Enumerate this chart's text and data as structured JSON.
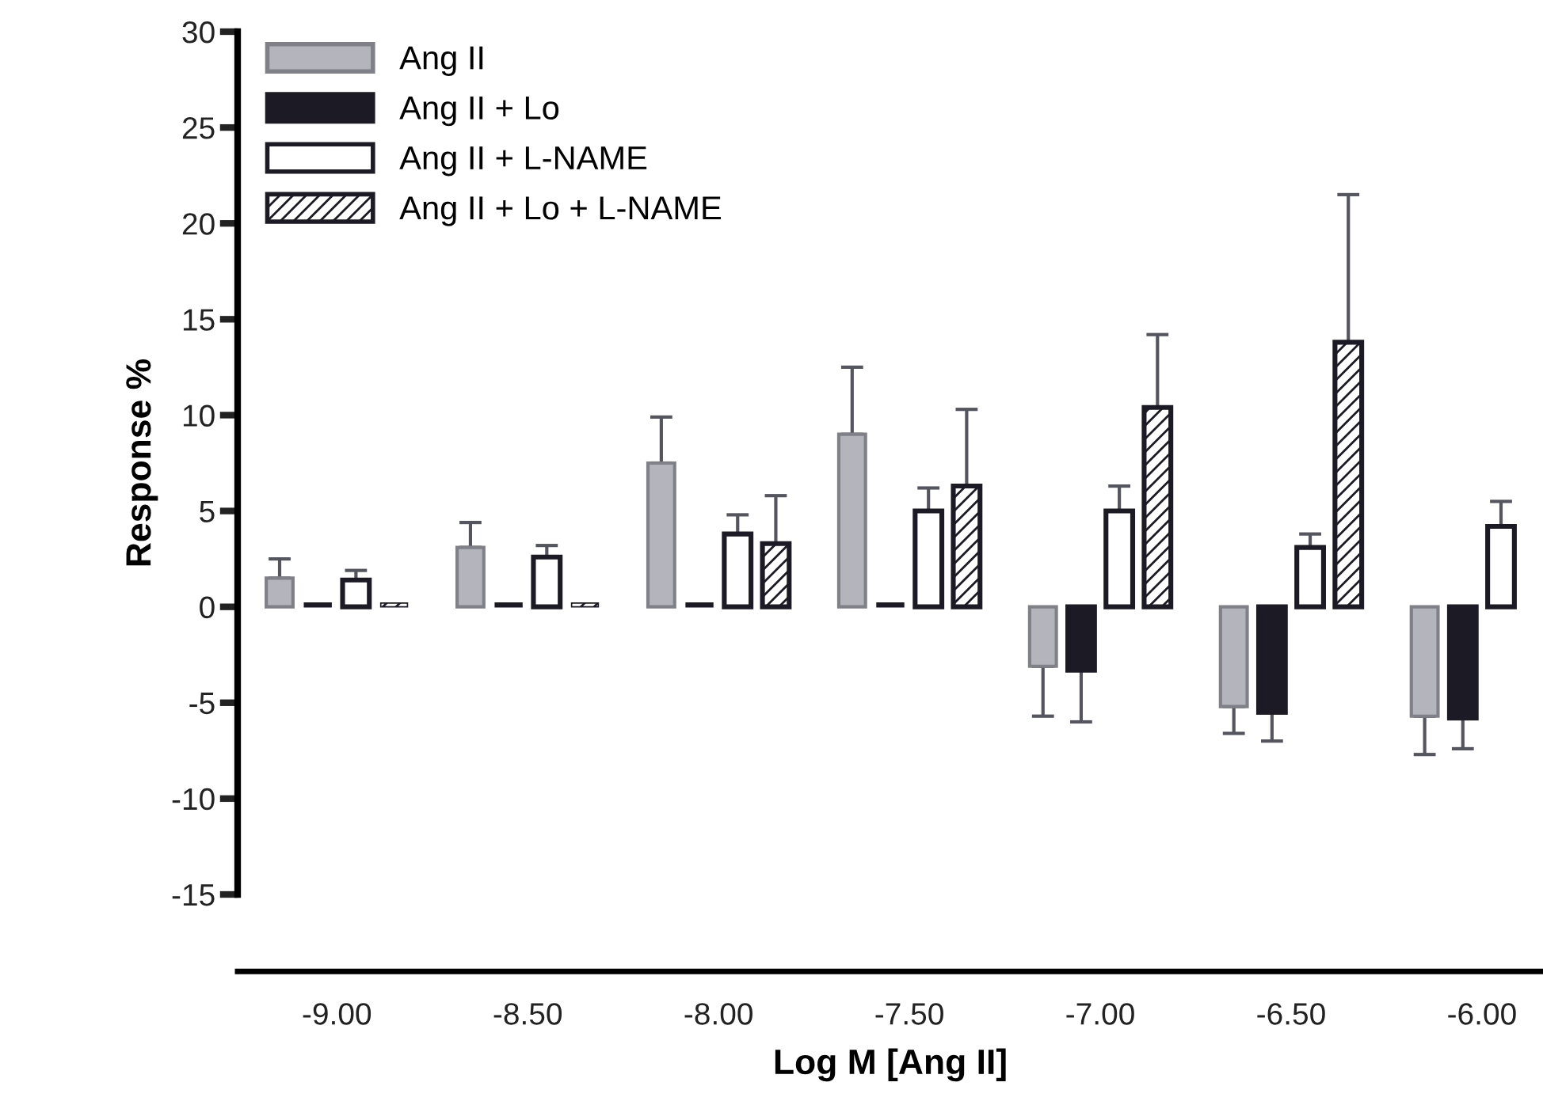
{
  "chart_data": {
    "type": "bar",
    "xlabel": "Log M [Ang II]",
    "ylabel": "Response %",
    "categories": [
      "-9.00",
      "-8.50",
      "-8.00",
      "-7.50",
      "-7.00",
      "-6.50",
      "-6.00"
    ],
    "series": [
      {
        "name": "Ang II",
        "color": "#b4b4bc",
        "values": [
          1.5,
          3.1,
          7.5,
          9.0,
          -3.1,
          -5.2,
          -5.7
        ],
        "errors": [
          [
            1.5,
            2.5
          ],
          [
            3.1,
            4.4
          ],
          [
            7.5,
            9.9
          ],
          [
            9.0,
            12.5
          ],
          [
            -5.7,
            -3.1
          ],
          [
            -6.6,
            -5.2
          ],
          [
            -7.7,
            -5.7
          ]
        ]
      },
      {
        "name": "Ang II + Lo",
        "color": "#1c1a24",
        "values": [
          0.2,
          0.2,
          0.2,
          0.2,
          -3.3,
          -5.5,
          -5.8
        ],
        "errors": [
          null,
          null,
          null,
          null,
          [
            -6.0,
            -3.3
          ],
          [
            -7.0,
            -5.5
          ],
          [
            -7.4,
            -5.8
          ]
        ]
      },
      {
        "name": "Ang II + L-NAME",
        "color": "#ffffff",
        "values": [
          1.4,
          2.6,
          3.8,
          5.0,
          5.0,
          3.1,
          4.2
        ],
        "errors": [
          [
            1.4,
            1.9
          ],
          [
            2.6,
            3.2
          ],
          [
            3.8,
            4.8
          ],
          [
            5.0,
            6.2
          ],
          [
            5.0,
            6.3
          ],
          [
            3.1,
            3.8
          ],
          [
            4.2,
            5.5
          ]
        ]
      },
      {
        "name": "Ang II + Lo + L-NAME",
        "color": "#ffffff",
        "values": [
          0.2,
          0.2,
          3.3,
          6.3,
          10.4,
          13.8,
          null
        ],
        "errors": [
          null,
          null,
          [
            3.3,
            5.8
          ],
          [
            6.3,
            10.3
          ],
          [
            10.4,
            14.2
          ],
          [
            13.8,
            21.5
          ],
          null
        ]
      }
    ],
    "ylim": [
      -15,
      30
    ],
    "yticks": [
      -15,
      -10,
      -5,
      0,
      5,
      10,
      15,
      20,
      25,
      30
    ],
    "grid": false,
    "legend": "top left"
  }
}
